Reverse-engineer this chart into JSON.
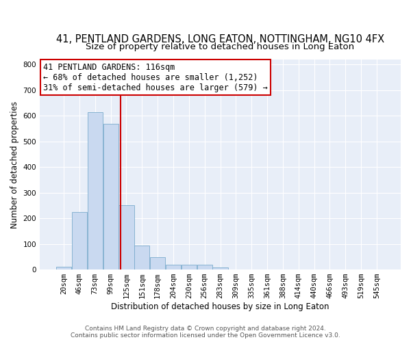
{
  "title": "41, PENTLAND GARDENS, LONG EATON, NOTTINGHAM, NG10 4FX",
  "subtitle": "Size of property relative to detached houses in Long Eaton",
  "xlabel": "Distribution of detached houses by size in Long Eaton",
  "ylabel": "Number of detached properties",
  "bin_labels": [
    "20sqm",
    "46sqm",
    "73sqm",
    "99sqm",
    "125sqm",
    "151sqm",
    "178sqm",
    "204sqm",
    "230sqm",
    "256sqm",
    "283sqm",
    "309sqm",
    "335sqm",
    "361sqm",
    "388sqm",
    "414sqm",
    "440sqm",
    "466sqm",
    "493sqm",
    "519sqm",
    "545sqm"
  ],
  "bar_heights": [
    10,
    225,
    615,
    570,
    250,
    95,
    47,
    20,
    20,
    18,
    8,
    0,
    0,
    0,
    0,
    0,
    0,
    0,
    0,
    0,
    0
  ],
  "bar_color": "#c9d9f0",
  "bar_edge_color": "#7aabcc",
  "annotation_text": "41 PENTLAND GARDENS: 116sqm\n← 68% of detached houses are smaller (1,252)\n31% of semi-detached houses are larger (579) →",
  "annotation_box_color": "white",
  "annotation_box_edge_color": "#cc0000",
  "vertical_line_color": "#cc0000",
  "vline_pos": 3.62,
  "ylim": [
    0,
    820
  ],
  "yticks": [
    0,
    100,
    200,
    300,
    400,
    500,
    600,
    700,
    800
  ],
  "footer_line1": "Contains HM Land Registry data © Crown copyright and database right 2024.",
  "footer_line2": "Contains public sector information licensed under the Open Government Licence v3.0.",
  "bg_color": "#e8eef8",
  "grid_color": "#ffffff",
  "title_fontsize": 10.5,
  "subtitle_fontsize": 9.5,
  "axis_label_fontsize": 8.5,
  "tick_fontsize": 7.5,
  "annot_fontsize": 8.5,
  "footer_fontsize": 6.5
}
